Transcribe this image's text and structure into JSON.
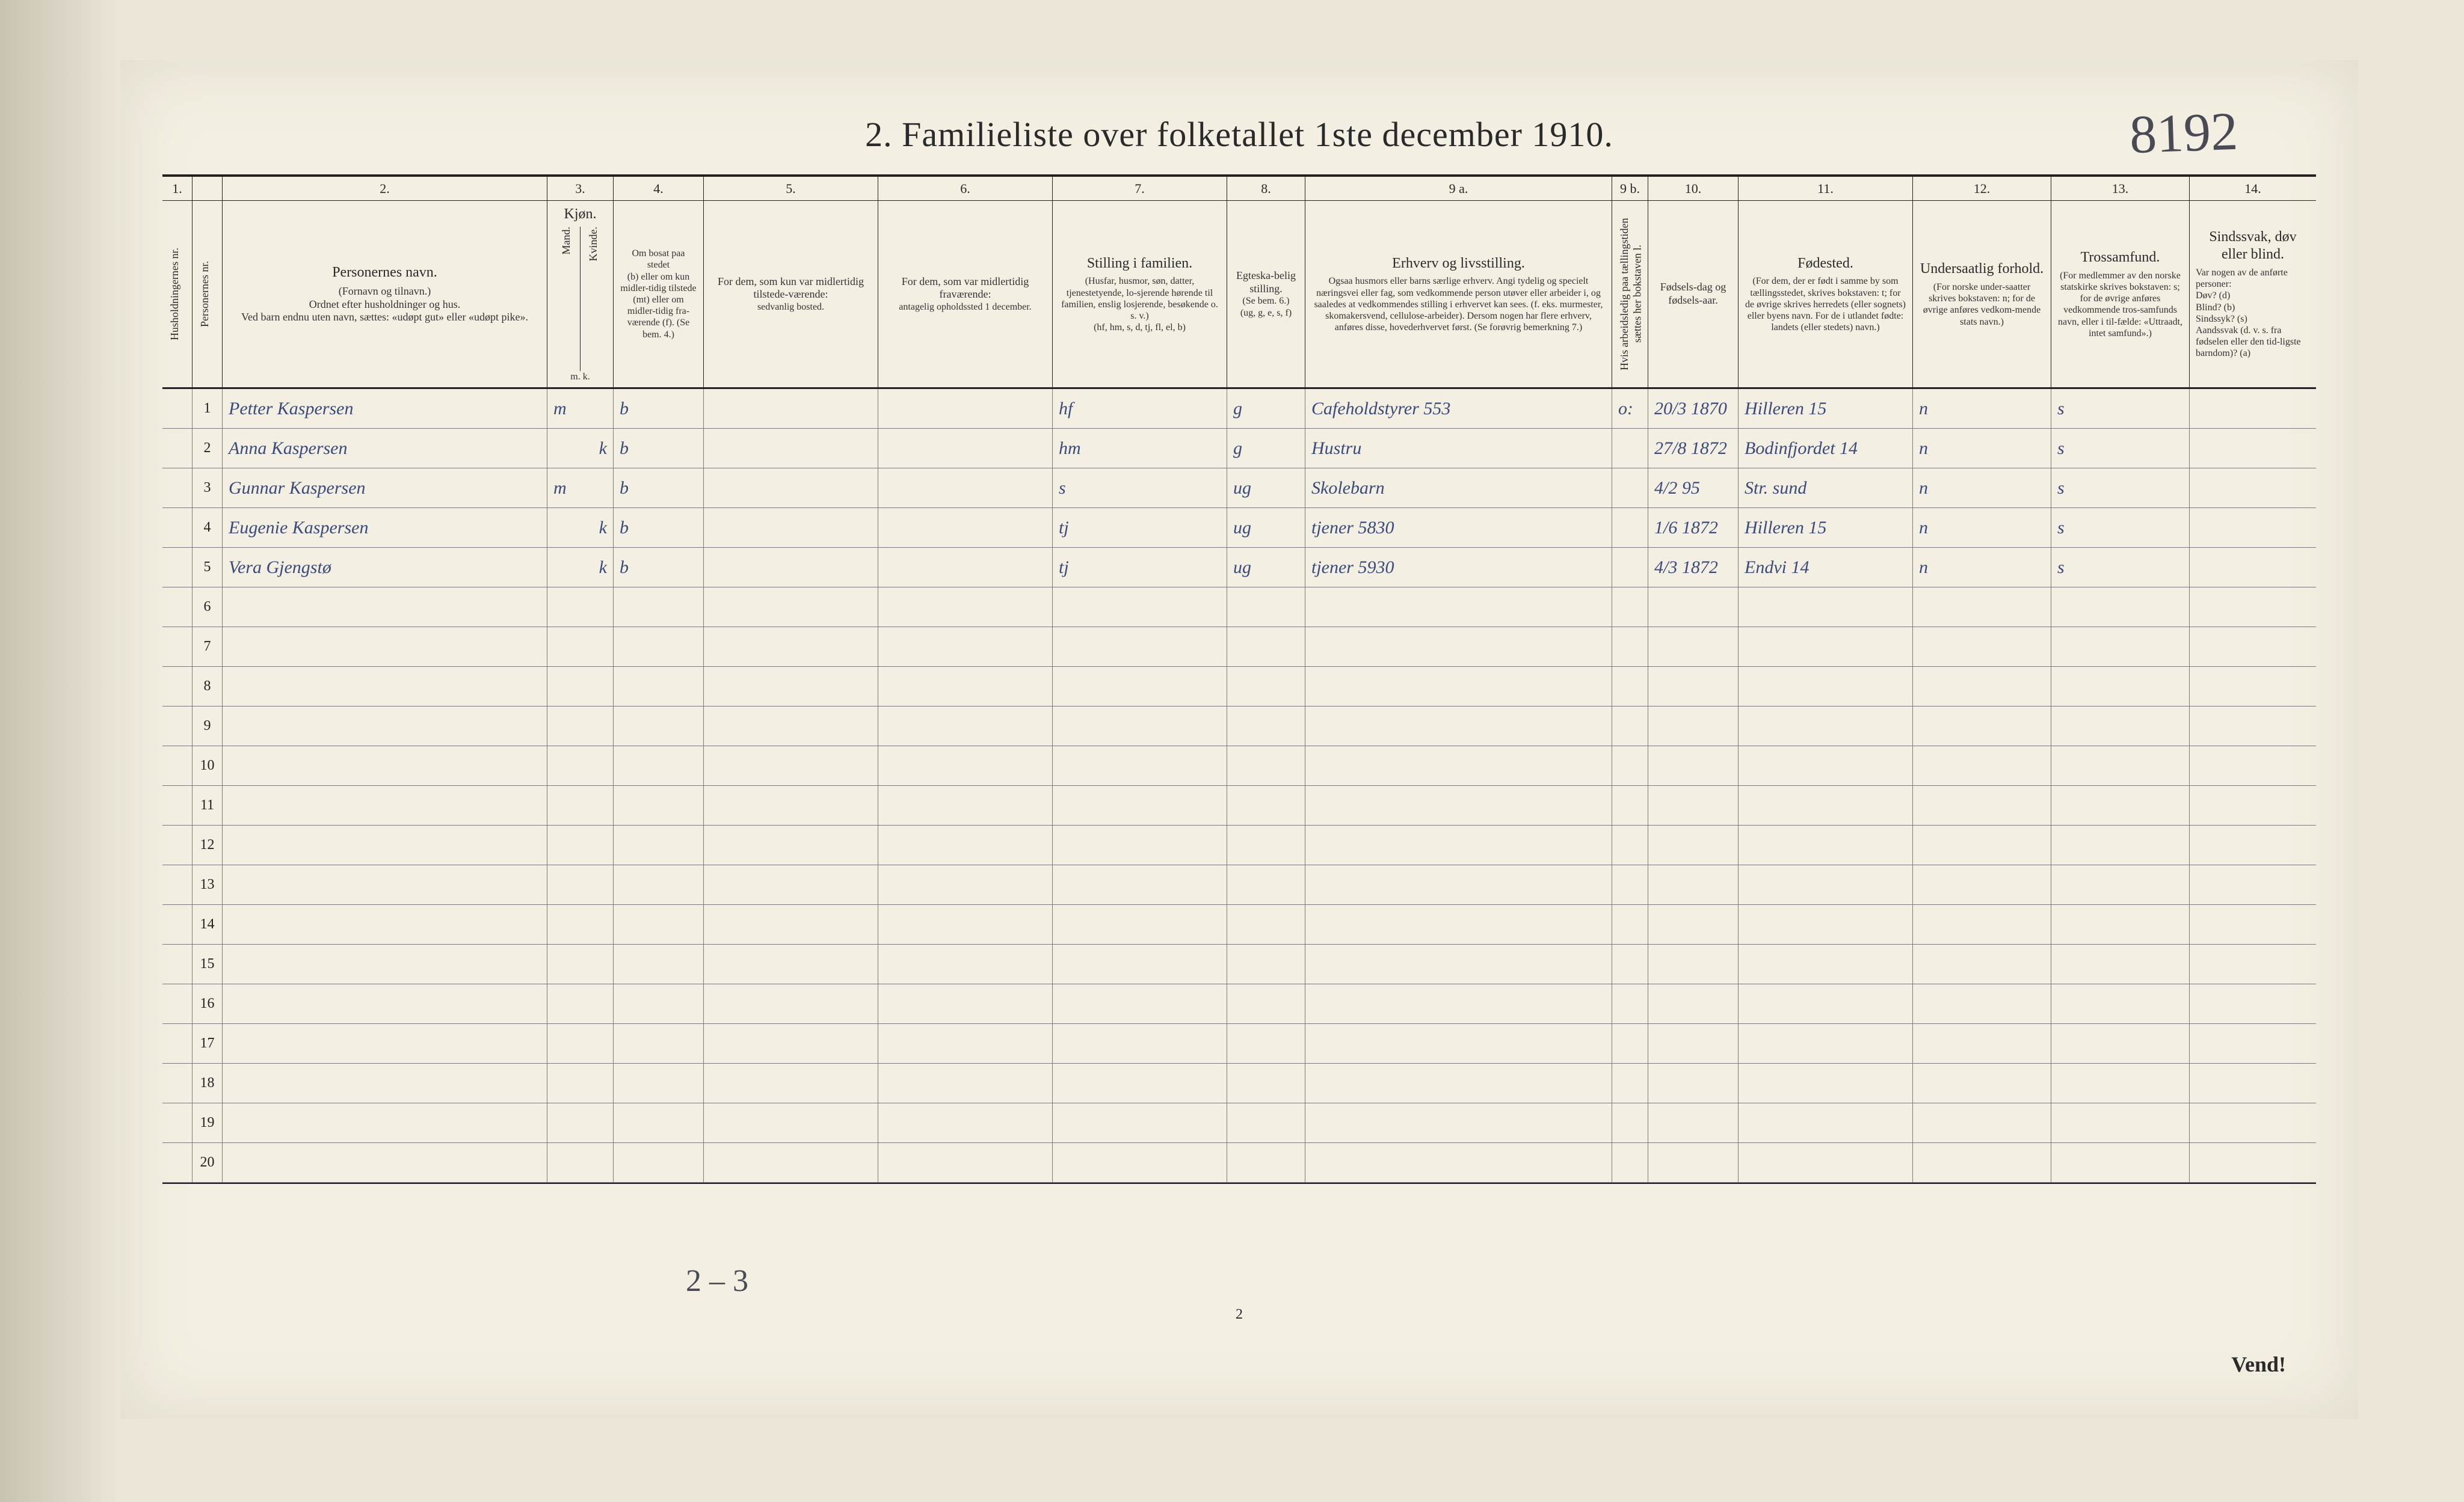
{
  "title": "2.  Familieliste over folketallet 1ste december 1910.",
  "handnote_top_right": "8192",
  "footer_page_num": "2",
  "vend": "Vend!",
  "bottom_hand": "2 – 3",
  "col_numbers": [
    "1.",
    "2.",
    "3.",
    "4.",
    "5.",
    "6.",
    "7.",
    "8.",
    "9 a.",
    "9 b.",
    "10.",
    "11.",
    "12.",
    "13.",
    "14."
  ],
  "headers": {
    "c1": {
      "rot": "Husholdningernes nr."
    },
    "c2": {
      "rot": "Personernes nr."
    },
    "c3": {
      "main": "Personernes navn.",
      "sub": "(Fornavn og tilnavn.)\nOrdnet efter husholdninger og hus.\nVed barn endnu uten navn, sættes: «udøpt gut» eller «udøpt pike»."
    },
    "c4": {
      "main": "Kjøn.",
      "sub_a": "Mand.",
      "sub_b": "Kvinde.",
      "tiny": "m.  k."
    },
    "c5": {
      "main": "Om bosat paa stedet",
      "sub": "(b) eller om kun midler-tidig tilstede (mt) eller om midler-tidig fra-værende (f). (Se bem. 4.)"
    },
    "c6": {
      "main": "For dem, som kun var midlertidig tilstede-værende:",
      "sub": "sedvanlig bosted."
    },
    "c7": {
      "main": "For dem, som var midlertidig fraværende:",
      "sub": "antagelig opholdssted 1 december."
    },
    "c8": {
      "main": "Stilling i familien.",
      "sub": "(Husfar, husmor, søn, datter, tjenestetyende, lo-sjerende hørende til familien, enslig losjerende, besøkende o. s. v.)\n(hf, hm, s, d, tj, fl, el, b)"
    },
    "c9": {
      "main": "Egteska-belig stilling.",
      "sub": "(Se bem. 6.)\n(ug, g, e, s, f)"
    },
    "c10": {
      "main": "Erhverv og livsstilling.",
      "sub": "Ogsaa husmors eller barns særlige erhverv. Angi tydelig og specielt næringsvei eller fag, som vedkommende person utøver eller arbeider i, og saaledes at vedkommendes stilling i erhvervet kan sees. (f. eks. murmester, skomakersvend, cellulose-arbeider). Dersom nogen har flere erhverv, anføres disse, hovederhvervet først. (Se forøvrig bemerkning 7.)"
    },
    "c11": {
      "rot": "Hvis arbeidsledig paa tællingstiden sættes her bokstaven l."
    },
    "c12": {
      "main": "Fødsels-dag og fødsels-aar."
    },
    "c13": {
      "main": "Fødested.",
      "sub": "(For dem, der er født i samme by som tællingsstedet, skrives bokstaven: t; for de øvrige skrives herredets (eller sognets) eller byens navn. For de i utlandet fødte: landets (eller stedets) navn.)"
    },
    "c14": {
      "main": "Undersaatlig forhold.",
      "sub": "(For norske under-saatter skrives bokstaven: n; for de øvrige anføres vedkom-mende stats navn.)"
    },
    "c15": {
      "main": "Trossamfund.",
      "sub": "(For medlemmer av den norske statskirke skrives bokstaven: s; for de øvrige anføres vedkommende tros-samfunds navn, eller i til-fælde: «Uttraadt, intet samfund».)"
    },
    "c16": {
      "main": "Sindssvak, døv eller blind.",
      "sub": "Var nogen av de anførte personer:\nDøv?    (d)\nBlind?   (b)\nSindssyk? (s)\nAandssvak (d. v. s. fra fødselen eller den tid-ligste barndom)? (a)"
    }
  },
  "rows": [
    {
      "n": "1",
      "name": "Petter Kaspersen",
      "mk": "m",
      "b": "b",
      "fam": "hf",
      "eg": "g",
      "erhv": "Cafeholdstyrer 553",
      "arb": "o:",
      "fd": "20/3 1870",
      "fs": "Hilleren 15",
      "us": "n",
      "ts": "s"
    },
    {
      "n": "2",
      "name": "Anna Kaspersen",
      "mk": "k",
      "b": "b",
      "fam": "hm",
      "eg": "g",
      "erhv": "Hustru",
      "arb": "",
      "fd": "27/8 1872",
      "fs": "Bodinfjordet 14",
      "us": "n",
      "ts": "s"
    },
    {
      "n": "3",
      "name": "Gunnar Kaspersen",
      "mk": "m",
      "b": "b",
      "fam": "s",
      "eg": "ug",
      "erhv": "Skolebarn",
      "arb": "",
      "fd": "4/2 95",
      "fs": "Str. sund",
      "us": "n",
      "ts": "s"
    },
    {
      "n": "4",
      "name": "Eugenie Kaspersen",
      "mk": "k",
      "b": "b",
      "fam": "tj",
      "eg": "ug",
      "erhv": "tjener   5830",
      "arb": "",
      "fd": "1/6 1872",
      "fs": "Hilleren 15",
      "us": "n",
      "ts": "s"
    },
    {
      "n": "5",
      "name": "Vera Gjengstø",
      "mk": "k",
      "b": "b",
      "fam": "tj",
      "eg": "ug",
      "erhv": "tjener   5930",
      "arb": "",
      "fd": "4/3 1872",
      "fs": "Endvi 14",
      "us": "n",
      "ts": "s"
    }
  ],
  "blank_rows": [
    "6",
    "7",
    "8",
    "9",
    "10",
    "11",
    "12",
    "13",
    "14",
    "15",
    "16",
    "17",
    "18",
    "19",
    "20"
  ]
}
